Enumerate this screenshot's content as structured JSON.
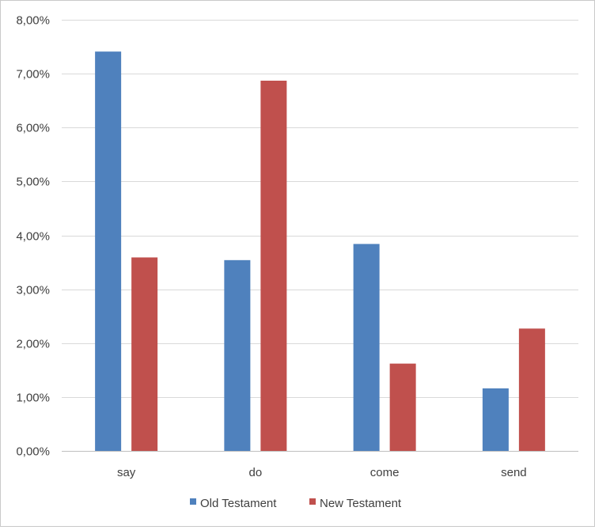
{
  "chart_data": {
    "type": "bar",
    "categories": [
      "say",
      "do",
      "come",
      "send"
    ],
    "series": [
      {
        "name": "Old Testament",
        "color": "#4f81bd",
        "values": [
          7.41,
          3.54,
          3.84,
          1.16
        ]
      },
      {
        "name": "New Testament",
        "color": "#c0504d",
        "values": [
          3.59,
          6.87,
          1.62,
          2.27
        ]
      }
    ],
    "ylim": [
      0,
      8
    ],
    "y_ticks": [
      0,
      1,
      2,
      3,
      4,
      5,
      6,
      7,
      8
    ],
    "y_tick_labels": [
      "0,00%",
      "1,00%",
      "2,00%",
      "3,00%",
      "4,00%",
      "5,00%",
      "6,00%",
      "7,00%",
      "8,00%"
    ],
    "y_unit": "%",
    "grid": true,
    "legend_position": "bottom",
    "title": "",
    "xlabel": "",
    "ylabel": ""
  }
}
